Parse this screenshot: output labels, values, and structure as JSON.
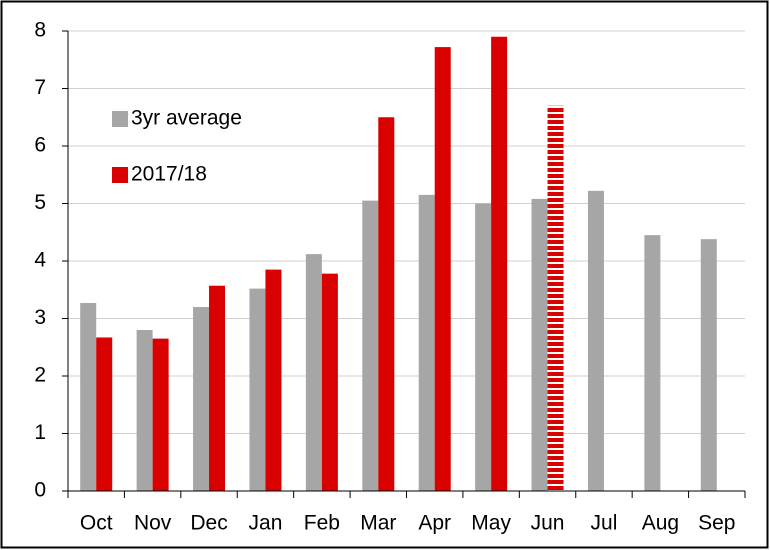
{
  "chart_data": {
    "type": "bar",
    "categories": [
      "Oct",
      "Nov",
      "Dec",
      "Jan",
      "Feb",
      "Mar",
      "Apr",
      "May",
      "Jun",
      "Jul",
      "Aug",
      "Sep"
    ],
    "series": [
      {
        "name": "3yr average",
        "color": "#a6a6a6",
        "values": [
          3.27,
          2.8,
          3.2,
          3.52,
          4.12,
          5.05,
          5.15,
          5.0,
          5.08,
          5.22,
          4.45,
          4.38
        ]
      },
      {
        "name": "2017/18",
        "color": "#d90000",
        "values": [
          2.67,
          2.65,
          3.57,
          3.85,
          3.78,
          6.5,
          7.72,
          7.9,
          6.7,
          null,
          null,
          null
        ]
      }
    ],
    "hatched_categories": [
      "Jun"
    ],
    "ylim": [
      0,
      8
    ],
    "yticks": [
      0,
      1,
      2,
      3,
      4,
      5,
      6,
      7,
      8
    ],
    "grid": true,
    "legend": "upper left"
  }
}
